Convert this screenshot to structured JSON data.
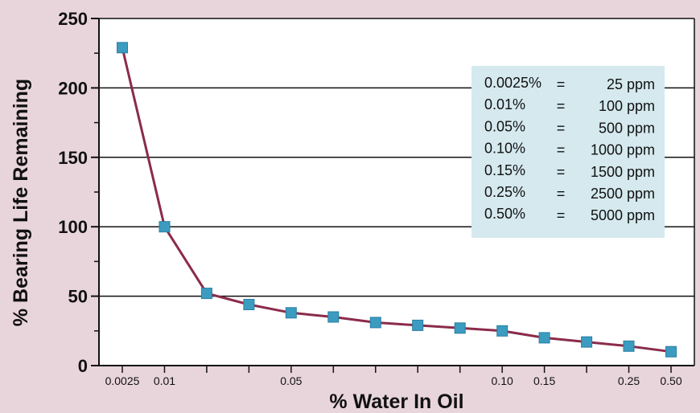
{
  "chart_data": {
    "type": "line",
    "xlabel": "% Water In Oil",
    "ylabel": "% Bearing Life Remaining",
    "ylim": [
      0,
      250
    ],
    "yticks": [
      0,
      50,
      100,
      150,
      200,
      250
    ],
    "grid": "horizontal",
    "legend_placement": "top-right",
    "x_tick_labels": [
      "0.0025",
      "0.01",
      "",
      "",
      "0.05",
      "",
      "",
      "",
      "",
      "0.10",
      "0.15",
      "",
      "0.25",
      "0.50"
    ],
    "series": [
      {
        "values": [
          229,
          100,
          52,
          44,
          38,
          35,
          31,
          29,
          27,
          25,
          20,
          17,
          14,
          10
        ]
      }
    ],
    "colors": {
      "line": "#8b2b4a",
      "marker": "#3b9cc0",
      "marker_edge": "#2a7ea3",
      "background": "#e8d5db",
      "plot_background": "#ffffff",
      "legend_background": "#d5e9ef"
    },
    "legend_rows": [
      {
        "pct": "0.0025%",
        "eq": "=",
        "ppm": "25 ppm"
      },
      {
        "pct": "0.01%",
        "eq": "=",
        "ppm": "100 ppm"
      },
      {
        "pct": "0.05%",
        "eq": "=",
        "ppm": "500 ppm"
      },
      {
        "pct": "0.10%",
        "eq": "=",
        "ppm": "1000 ppm"
      },
      {
        "pct": "0.15%",
        "eq": "=",
        "ppm": "1500 ppm"
      },
      {
        "pct": "0.25%",
        "eq": "=",
        "ppm": "2500 ppm"
      },
      {
        "pct": "0.50%",
        "eq": "=",
        "ppm": "5000 ppm"
      }
    ]
  }
}
